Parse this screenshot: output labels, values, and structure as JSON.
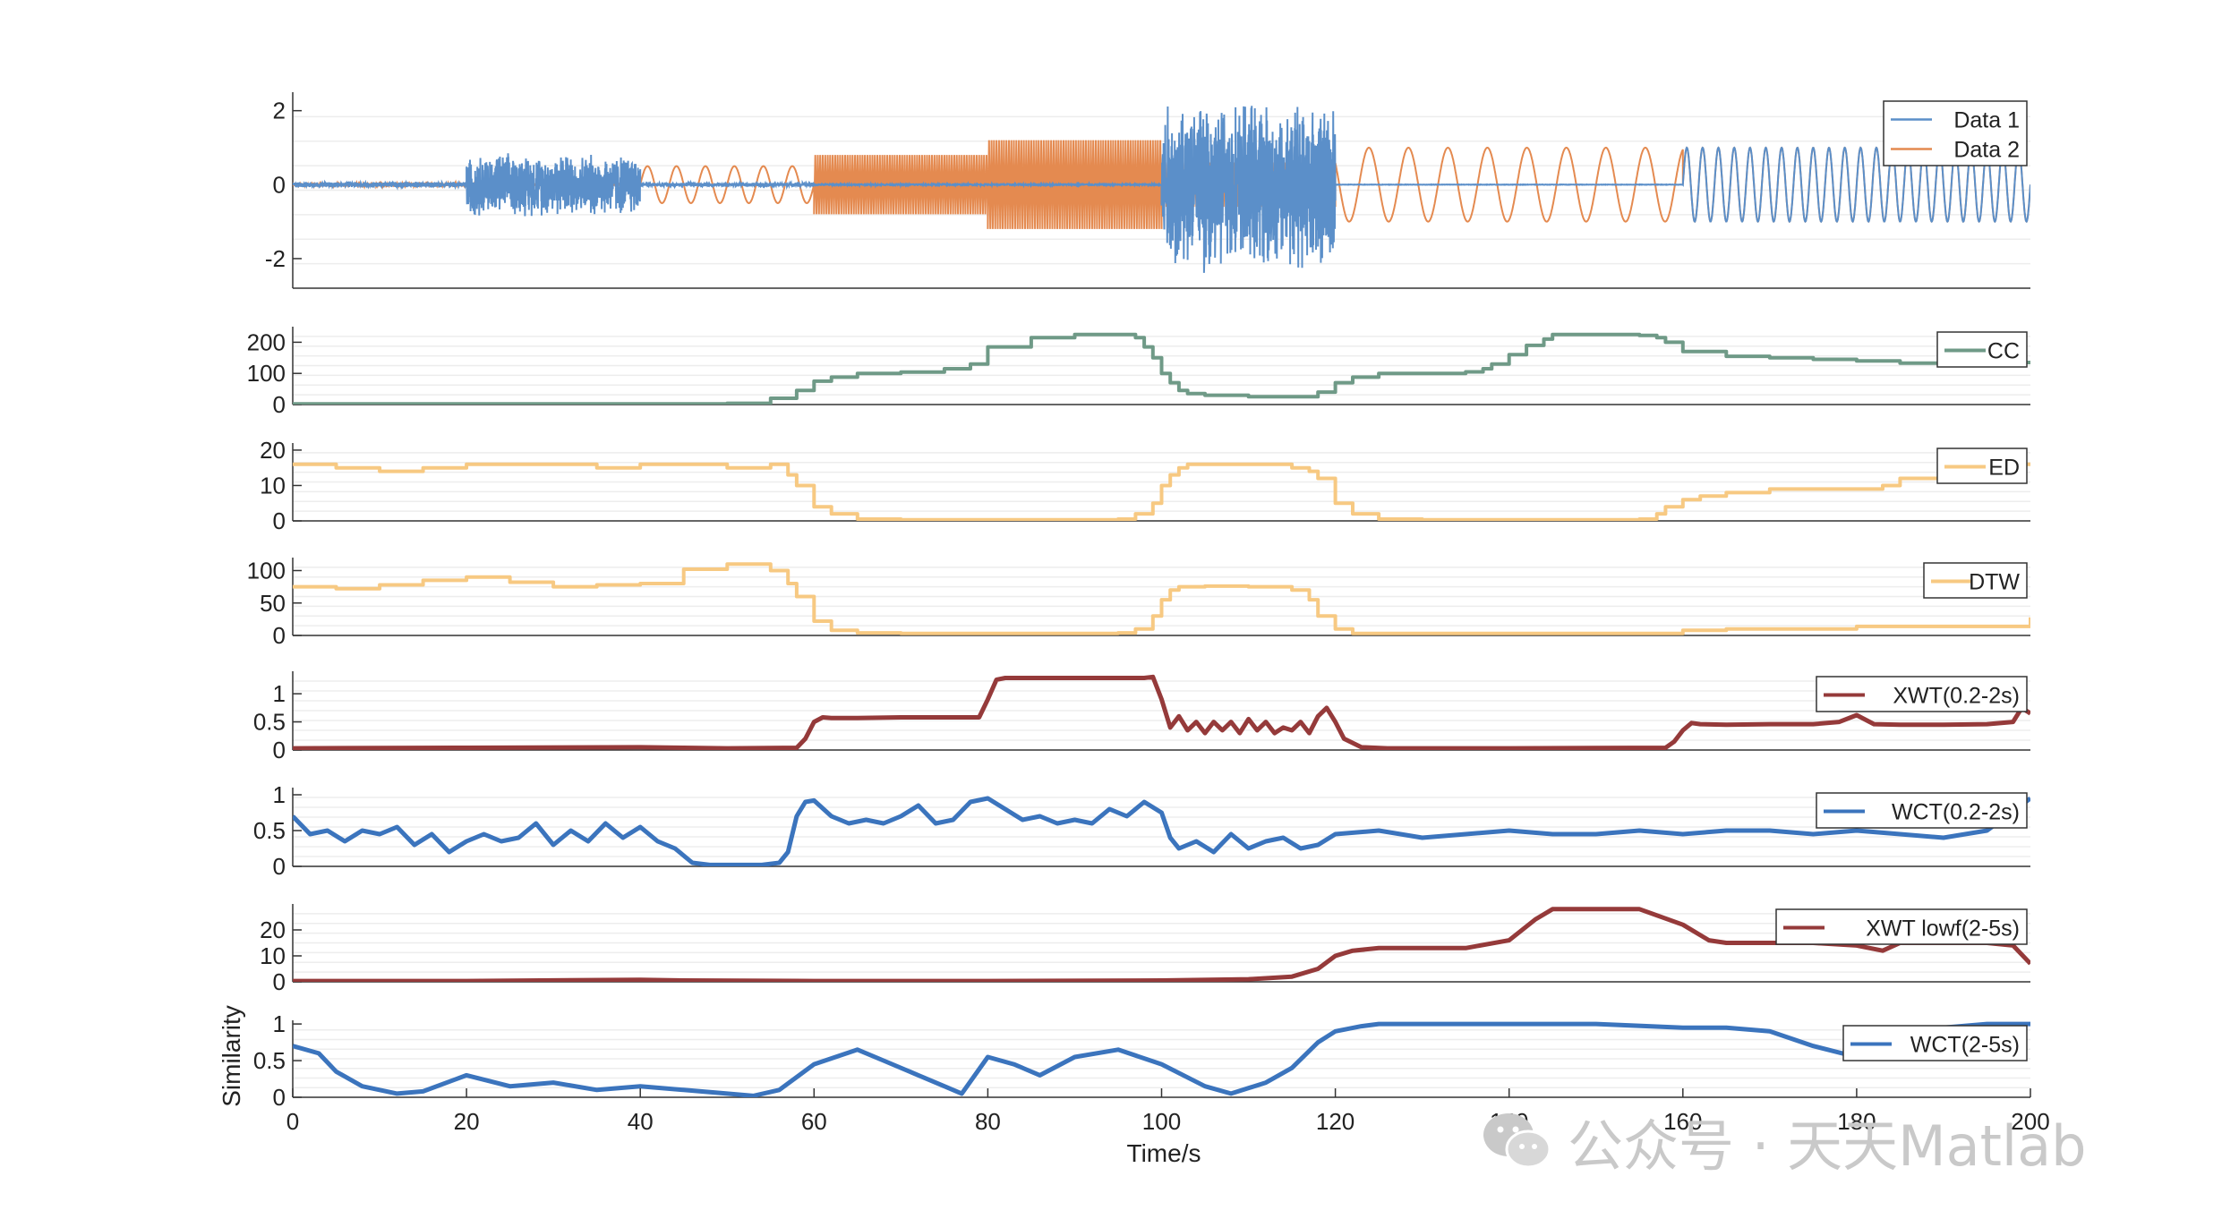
{
  "figure": {
    "xlabel": "Time/s",
    "ylabel": "Similarity",
    "xticks": [
      "0",
      "20",
      "40",
      "60",
      "80",
      "100",
      "120",
      "140",
      "160",
      "180",
      "200"
    ]
  },
  "watermark": {
    "text": "公众号 · 天天Matlab",
    "icon": "wechat-icon"
  },
  "chart_data": [
    {
      "type": "line",
      "panel": "signals",
      "xlim": [
        0,
        200
      ],
      "ylim": [
        -2.8,
        2.5
      ],
      "yticks": [
        "-2",
        "0",
        "2"
      ],
      "ytick_values": [
        -2,
        0,
        2
      ],
      "legend": [
        "Data 1",
        "Data 2"
      ],
      "legend_position": "top-right",
      "grid": true,
      "series": [
        {
          "name": "Data 1",
          "color": "#5b8fc9",
          "segments": [
            {
              "t": [
                0,
                20
              ],
              "kind": "noise",
              "amp": 0.08
            },
            {
              "t": [
                20,
                40
              ],
              "kind": "noise",
              "amp": 0.9
            },
            {
              "t": [
                40,
                60
              ],
              "kind": "noise",
              "amp": 0.06
            },
            {
              "t": [
                60,
                100
              ],
              "kind": "flat",
              "amp": 0.02
            },
            {
              "t": [
                100,
                120
              ],
              "kind": "noise",
              "amp": 2.4
            },
            {
              "t": [
                120,
                160
              ],
              "kind": "flat",
              "amp": 0.0
            },
            {
              "t": [
                160,
                200
              ],
              "kind": "sine",
              "amp": 1.0,
              "freq": 0.55
            }
          ]
        },
        {
          "name": "Data 2",
          "color": "#e48a50",
          "segments": [
            {
              "t": [
                0,
                20
              ],
              "kind": "noise",
              "amp": 0.06
            },
            {
              "t": [
                20,
                40
              ],
              "kind": "noise",
              "amp": 0.05
            },
            {
              "t": [
                40,
                60
              ],
              "kind": "sine",
              "amp": 0.5,
              "freq": 0.3
            },
            {
              "t": [
                60,
                80
              ],
              "kind": "band",
              "amp": 0.8
            },
            {
              "t": [
                80,
                100
              ],
              "kind": "band",
              "amp": 1.2
            },
            {
              "t": [
                100,
                120
              ],
              "kind": "band",
              "amp": 0.6
            },
            {
              "t": [
                120,
                160
              ],
              "kind": "sine",
              "amp": 1.0,
              "freq": 0.22
            },
            {
              "t": [
                160,
                200
              ],
              "kind": "sine",
              "amp": 1.0,
              "freq": 0.55
            }
          ]
        }
      ]
    },
    {
      "type": "line",
      "panel": "CC",
      "legend": [
        "CC"
      ],
      "color": "#6f9a87",
      "ylim": [
        0,
        250
      ],
      "yticks": [
        "0",
        "100",
        "200"
      ],
      "ytick_values": [
        0,
        100,
        200
      ],
      "lw": 4,
      "style": "step",
      "x": [
        0,
        50,
        55,
        58,
        60,
        62,
        65,
        70,
        75,
        78,
        80,
        85,
        90,
        95,
        97,
        98,
        99,
        100,
        101,
        102,
        103,
        105,
        110,
        115,
        118,
        120,
        122,
        125,
        130,
        135,
        137,
        138,
        140,
        142,
        144,
        145,
        150,
        155,
        157,
        158,
        160,
        165,
        170,
        175,
        180,
        185,
        190,
        195,
        200
      ],
      "y": [
        2,
        4,
        20,
        45,
        75,
        88,
        100,
        104,
        115,
        130,
        185,
        215,
        225,
        225,
        215,
        185,
        150,
        100,
        70,
        45,
        35,
        30,
        25,
        25,
        40,
        70,
        88,
        100,
        100,
        105,
        115,
        130,
        160,
        190,
        210,
        225,
        225,
        222,
        215,
        200,
        170,
        155,
        150,
        145,
        140,
        133,
        133,
        135,
        140
      ]
    },
    {
      "type": "line",
      "panel": "ED",
      "legend": [
        "ED"
      ],
      "color": "#f7c982",
      "ylim": [
        0,
        22
      ],
      "yticks": [
        "0",
        "10",
        "20"
      ],
      "ytick_values": [
        0,
        10,
        20
      ],
      "lw": 4,
      "style": "step",
      "x": [
        0,
        5,
        10,
        15,
        20,
        25,
        30,
        35,
        40,
        45,
        50,
        55,
        57,
        58,
        60,
        62,
        65,
        70,
        80,
        90,
        95,
        97,
        99,
        100,
        101,
        102,
        103,
        105,
        110,
        115,
        117,
        118,
        120,
        122,
        125,
        130,
        140,
        150,
        155,
        157,
        158,
        160,
        162,
        165,
        170,
        175,
        180,
        183,
        185,
        190,
        195,
        200
      ],
      "y": [
        16,
        15,
        14,
        15,
        16,
        16,
        16,
        15,
        16,
        16,
        15,
        16,
        13,
        10,
        4,
        2,
        0.5,
        0.3,
        0.3,
        0.3,
        0.5,
        2,
        5,
        10,
        13,
        15,
        16,
        16,
        16,
        15,
        14,
        12,
        5,
        2,
        0.5,
        0.3,
        0.3,
        0.3,
        0.5,
        2,
        4,
        6,
        7,
        8,
        9,
        9,
        9,
        10,
        12,
        14,
        16,
        16
      ]
    },
    {
      "type": "line",
      "panel": "DTW",
      "legend": [
        "DTW"
      ],
      "color": "#f7c982",
      "ylim": [
        0,
        120
      ],
      "yticks": [
        "0",
        "50",
        "100"
      ],
      "ytick_values": [
        0,
        50,
        100
      ],
      "lw": 4,
      "style": "step",
      "x": [
        0,
        5,
        10,
        15,
        20,
        25,
        30,
        35,
        40,
        45,
        50,
        55,
        57,
        58,
        60,
        62,
        65,
        70,
        80,
        90,
        95,
        97,
        99,
        100,
        101,
        102,
        103,
        105,
        110,
        115,
        117,
        118,
        120,
        122,
        125,
        130,
        140,
        150,
        155,
        160,
        165,
        170,
        180,
        185,
        190,
        200
      ],
      "y": [
        75,
        72,
        78,
        85,
        90,
        82,
        75,
        78,
        80,
        102,
        110,
        100,
        80,
        60,
        22,
        8,
        4,
        3,
        3,
        3,
        4,
        10,
        30,
        55,
        70,
        75,
        75,
        76,
        75,
        70,
        55,
        30,
        10,
        3,
        3,
        3,
        3,
        3,
        3,
        8,
        10,
        10,
        14,
        14,
        14,
        28
      ]
    },
    {
      "type": "line",
      "panel": "XWT(0.2-2s)",
      "legend": [
        "XWT(0.2-2s)"
      ],
      "color": "#953a3a",
      "ylim": [
        0,
        1.4
      ],
      "yticks": [
        "0",
        "0.5",
        "1"
      ],
      "ytick_values": [
        0,
        0.5,
        1
      ],
      "lw": 5,
      "x": [
        0,
        20,
        40,
        45,
        50,
        58,
        59,
        60,
        61,
        62,
        65,
        70,
        79,
        80,
        81,
        82,
        85,
        90,
        95,
        98,
        99,
        100,
        101,
        102,
        103,
        104,
        105,
        106,
        107,
        108,
        109,
        110,
        111,
        112,
        113,
        114,
        115,
        116,
        117,
        118,
        119,
        120,
        121,
        123,
        126,
        140,
        158,
        159,
        160,
        161,
        162,
        165,
        170,
        175,
        178,
        180,
        182,
        185,
        190,
        195,
        198,
        199,
        200
      ],
      "y": [
        0.03,
        0.04,
        0.05,
        0.04,
        0.03,
        0.04,
        0.2,
        0.5,
        0.58,
        0.57,
        0.57,
        0.58,
        0.58,
        0.9,
        1.25,
        1.28,
        1.28,
        1.28,
        1.28,
        1.28,
        1.3,
        0.9,
        0.4,
        0.6,
        0.35,
        0.5,
        0.3,
        0.5,
        0.35,
        0.5,
        0.3,
        0.55,
        0.35,
        0.5,
        0.3,
        0.4,
        0.35,
        0.5,
        0.3,
        0.6,
        0.75,
        0.5,
        0.2,
        0.05,
        0.03,
        0.03,
        0.04,
        0.15,
        0.35,
        0.48,
        0.46,
        0.45,
        0.46,
        0.46,
        0.5,
        0.62,
        0.46,
        0.45,
        0.45,
        0.46,
        0.5,
        0.75,
        0.65
      ]
    },
    {
      "type": "line",
      "panel": "WCT(0.2-2s)",
      "legend": [
        "WCT(0.2-2s)"
      ],
      "color": "#3b74bd",
      "ylim": [
        0,
        1.1
      ],
      "yticks": [
        "0",
        "0.5",
        "1"
      ],
      "ytick_values": [
        0,
        0.5,
        1
      ],
      "lw": 5,
      "x": [
        0,
        2,
        4,
        6,
        8,
        10,
        12,
        14,
        16,
        18,
        20,
        22,
        24,
        26,
        28,
        29,
        30,
        32,
        34,
        36,
        38,
        40,
        42,
        44,
        46,
        48,
        50,
        52,
        54,
        56,
        57,
        58,
        59,
        60,
        62,
        64,
        66,
        68,
        70,
        72,
        74,
        76,
        78,
        80,
        82,
        84,
        86,
        88,
        90,
        92,
        94,
        96,
        98,
        100,
        101,
        102,
        104,
        106,
        108,
        110,
        112,
        114,
        116,
        118,
        120,
        125,
        130,
        135,
        140,
        145,
        150,
        155,
        160,
        165,
        170,
        175,
        180,
        185,
        190,
        195,
        200
      ],
      "y": [
        0.7,
        0.45,
        0.5,
        0.35,
        0.5,
        0.45,
        0.55,
        0.3,
        0.45,
        0.2,
        0.35,
        0.45,
        0.35,
        0.4,
        0.6,
        0.45,
        0.3,
        0.5,
        0.35,
        0.6,
        0.4,
        0.55,
        0.35,
        0.25,
        0.05,
        0.02,
        0.02,
        0.02,
        0.02,
        0.05,
        0.2,
        0.7,
        0.9,
        0.92,
        0.7,
        0.6,
        0.65,
        0.6,
        0.7,
        0.85,
        0.6,
        0.65,
        0.9,
        0.95,
        0.8,
        0.65,
        0.7,
        0.6,
        0.65,
        0.6,
        0.8,
        0.7,
        0.9,
        0.75,
        0.4,
        0.25,
        0.35,
        0.2,
        0.45,
        0.25,
        0.35,
        0.4,
        0.25,
        0.3,
        0.45,
        0.5,
        0.4,
        0.45,
        0.5,
        0.45,
        0.45,
        0.5,
        0.45,
        0.5,
        0.5,
        0.45,
        0.5,
        0.45,
        0.4,
        0.5,
        0.95
      ]
    },
    {
      "type": "line",
      "panel": "XWT lowf(2-5s)",
      "legend": [
        "XWT lowf(2-5s)"
      ],
      "color": "#953a3a",
      "ylim": [
        0,
        30
      ],
      "yticks": [
        "0",
        "10",
        "20"
      ],
      "ytick_values": [
        0,
        10,
        20
      ],
      "lw": 5,
      "x": [
        0,
        20,
        40,
        45,
        60,
        80,
        100,
        110,
        115,
        118,
        120,
        122,
        125,
        130,
        135,
        140,
        143,
        145,
        150,
        155,
        160,
        163,
        165,
        170,
        175,
        180,
        183,
        185,
        190,
        195,
        198,
        200
      ],
      "y": [
        0.3,
        0.3,
        0.8,
        0.5,
        0.3,
        0.3,
        0.5,
        1,
        2,
        5,
        10,
        12,
        13,
        13,
        13,
        16,
        24,
        28,
        28,
        28,
        22,
        16,
        15,
        15,
        15,
        14,
        12,
        15,
        15,
        15,
        14,
        7
      ]
    },
    {
      "type": "line",
      "panel": "WCT(2-5s)",
      "legend": [
        "WCT(2-5s)"
      ],
      "color": "#3b74bd",
      "ylim": [
        0,
        1.05
      ],
      "yticks": [
        "0",
        "0.5",
        "1"
      ],
      "ytick_values": [
        0,
        0.5,
        1
      ],
      "lw": 5,
      "x": [
        0,
        3,
        5,
        8,
        12,
        15,
        20,
        25,
        30,
        35,
        40,
        45,
        50,
        53,
        56,
        60,
        65,
        68,
        72,
        75,
        77,
        80,
        83,
        86,
        90,
        95,
        100,
        105,
        108,
        112,
        115,
        118,
        120,
        123,
        125,
        130,
        140,
        150,
        160,
        165,
        170,
        175,
        180,
        185,
        190,
        195,
        200
      ],
      "y": [
        0.7,
        0.6,
        0.35,
        0.15,
        0.05,
        0.08,
        0.3,
        0.15,
        0.2,
        0.1,
        0.15,
        0.1,
        0.05,
        0.02,
        0.1,
        0.45,
        0.65,
        0.5,
        0.3,
        0.15,
        0.05,
        0.55,
        0.45,
        0.3,
        0.55,
        0.65,
        0.45,
        0.15,
        0.05,
        0.2,
        0.4,
        0.75,
        0.9,
        0.97,
        1,
        1,
        1,
        1,
        0.95,
        0.95,
        0.9,
        0.7,
        0.55,
        0.75,
        0.95,
        1,
        1
      ]
    }
  ]
}
